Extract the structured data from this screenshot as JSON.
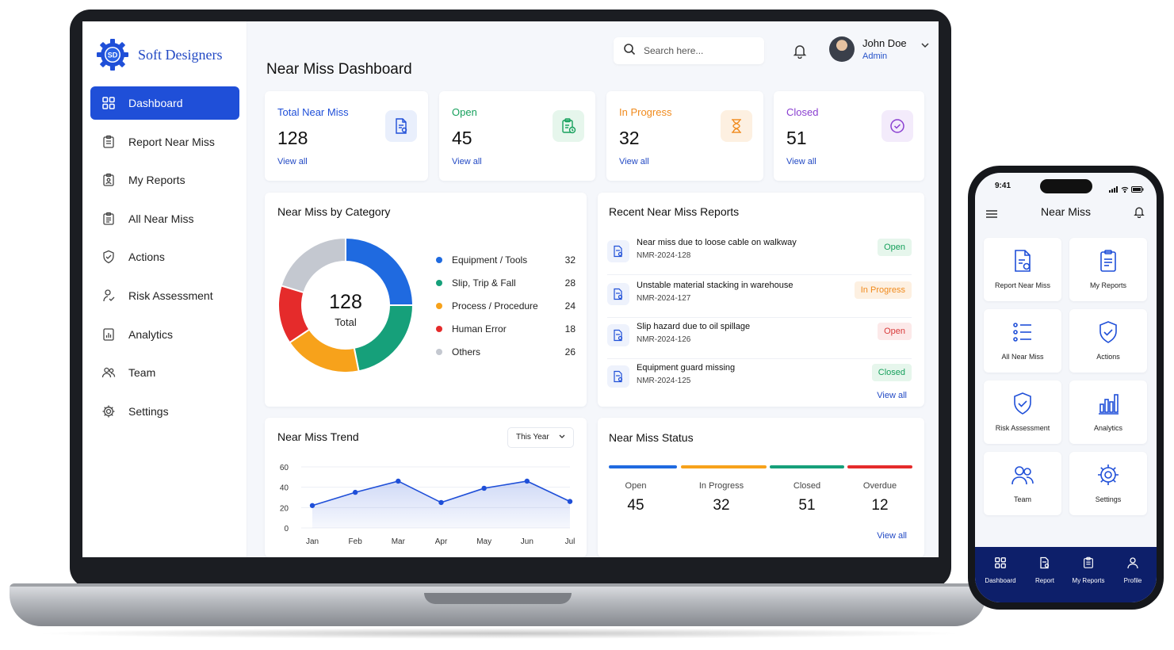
{
  "brand": {
    "name": "Soft Designers",
    "mark": "SD"
  },
  "sidebar": {
    "items": [
      {
        "label": "Dashboard",
        "icon": "grid-icon",
        "active": true
      },
      {
        "label": "Report Near Miss",
        "icon": "clipboard-icon"
      },
      {
        "label": "My Reports",
        "icon": "clipboard-user-icon"
      },
      {
        "label": "All Near Miss",
        "icon": "clipboard-list-icon"
      },
      {
        "label": "Actions",
        "icon": "shield-check-icon"
      },
      {
        "label": "Risk Assessment",
        "icon": "person-check-icon"
      },
      {
        "label": "Analytics",
        "icon": "chart-doc-icon"
      },
      {
        "label": "Team",
        "icon": "team-icon"
      },
      {
        "label": "Settings",
        "icon": "gear-icon"
      }
    ]
  },
  "header": {
    "title": "Near Miss Dashboard",
    "search_placeholder": "Search here...",
    "user_name": "John Doe",
    "user_role": "Admin"
  },
  "stats": [
    {
      "title": "Total Near Miss",
      "value": "128",
      "link": "View all",
      "color": "#1f4fd8",
      "icon": "doc-search-icon"
    },
    {
      "title": "Open",
      "value": "45",
      "link": "View all",
      "color": "#16a05c",
      "icon": "clipboard-clock-icon"
    },
    {
      "title": "In Progress",
      "value": "32",
      "link": "View all",
      "color": "#f08a1c",
      "icon": "hourglass-icon"
    },
    {
      "title": "Closed",
      "value": "51",
      "link": "View all",
      "color": "#8a3fd1",
      "icon": "check-circle-icon"
    }
  ],
  "category": {
    "title": "Near Miss by Category",
    "center_value": "128",
    "center_label": "Total"
  },
  "chart_data": [
    {
      "type": "pie",
      "title": "Near Miss by Category",
      "categories": [
        "Equipment / Tools",
        "Slip, Trip & Fall",
        "Process / Procedure",
        "Human Error",
        "Others"
      ],
      "values": [
        32,
        28,
        24,
        18,
        26
      ],
      "colors": [
        "#1f6ae0",
        "#16a07a",
        "#f7a21b",
        "#e52b2b",
        "#c4c8d0"
      ],
      "legend": "right"
    },
    {
      "type": "area",
      "title": "Near Miss Trend",
      "categories": [
        "Jan",
        "Feb",
        "Mar",
        "Apr",
        "May",
        "Jun",
        "Jul"
      ],
      "values": [
        22,
        35,
        46,
        25,
        39,
        46,
        26
      ],
      "ylim": [
        0,
        60
      ],
      "yticks": [
        0,
        20,
        40,
        60
      ],
      "grid": true
    }
  ],
  "recent": {
    "title": "Recent Near Miss Reports",
    "items": [
      {
        "title": "Near miss due to loose cable on walkway",
        "id": "NMR-2024-128",
        "status": "Open",
        "color": "#16a05c",
        "bg": "#e6f6ec"
      },
      {
        "title": "Unstable material stacking in warehouse",
        "id": "NMR-2024-127",
        "status": "In Progress",
        "color": "#f08a1c",
        "bg": "#fdf0e1"
      },
      {
        "title": "Slip hazard due to oil spillage",
        "id": "NMR-2024-126",
        "status": "Open",
        "color": "#d83a3a",
        "bg": "#fce9e9"
      },
      {
        "title": "Equipment guard missing",
        "id": "NMR-2024-125",
        "status": "Closed",
        "color": "#16a05c",
        "bg": "#e6f6ec"
      }
    ],
    "view_all": "View all"
  },
  "trend": {
    "title": "Near Miss Trend",
    "period": "This Year"
  },
  "status": {
    "title": "Near Miss Status",
    "items": [
      {
        "label": "Open",
        "value": "45",
        "color": "#1f6ae0"
      },
      {
        "label": "In Progress",
        "value": "32",
        "color": "#f7a21b"
      },
      {
        "label": "Closed",
        "value": "51",
        "color": "#16a07a"
      },
      {
        "label": "Overdue",
        "value": "12",
        "color": "#e52b2b"
      }
    ],
    "view_all": "View all"
  },
  "phone": {
    "time": "9:41",
    "title": "Near Miss",
    "tiles": [
      {
        "label": "Report Near Miss",
        "icon": "doc-search-icon"
      },
      {
        "label": "My Reports",
        "icon": "clipboard-icon"
      },
      {
        "label": "All Near Miss",
        "icon": "list-icon"
      },
      {
        "label": "Actions",
        "icon": "shield-check-icon"
      },
      {
        "label": "Risk Assessment",
        "icon": "shield-check-icon"
      },
      {
        "label": "Analytics",
        "icon": "bar-chart-icon"
      },
      {
        "label": "Team",
        "icon": "team-icon"
      },
      {
        "label": "Settings",
        "icon": "gear-icon"
      }
    ],
    "tabs": [
      {
        "label": "Dashboard",
        "icon": "grid-icon"
      },
      {
        "label": "Report",
        "icon": "doc-search-icon"
      },
      {
        "label": "My Reports",
        "icon": "clipboard-icon"
      },
      {
        "label": "Profile",
        "icon": "user-icon"
      }
    ]
  }
}
